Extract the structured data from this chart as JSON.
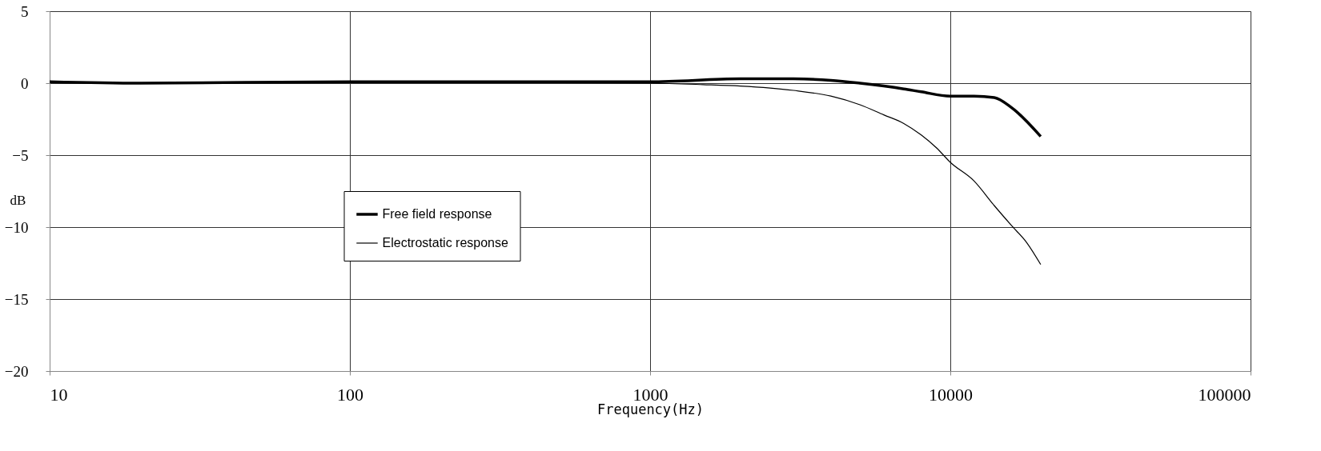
{
  "chart_data": {
    "type": "line",
    "xlabel": "Frequency(Hz)",
    "ylabel": "dB",
    "log": "x",
    "grid": true,
    "legend": "left",
    "xlim": [
      10,
      100000
    ],
    "xticks": [
      10,
      100,
      1000,
      10000,
      100000
    ],
    "ylim": [
      -20,
      5
    ],
    "yticks": [
      -20,
      -15,
      -10,
      -5,
      0,
      5
    ],
    "series": [
      {
        "name": "Free field response",
        "color": "#000000",
        "x": [
          10,
          20,
          100,
          1000,
          2000,
          3000,
          4000,
          5000,
          6000,
          7000,
          8000,
          10000,
          12000,
          14000,
          16000,
          20000
        ],
        "values": [
          0.1,
          0.0,
          0.1,
          0.1,
          0.3,
          0.3,
          0.2,
          0.0,
          -0.2,
          -0.4,
          -0.6,
          -0.9,
          -0.9,
          -1.0,
          -1.7,
          -3.7
        ]
      },
      {
        "name": "Electrostatic response",
        "color": "#000000",
        "x": [
          10,
          20,
          100,
          1000,
          1500,
          2000,
          3000,
          4000,
          5000,
          6000,
          7000,
          8000,
          9000,
          10000,
          12000,
          14000,
          16000,
          18000,
          20000
        ],
        "values": [
          0.1,
          0.0,
          0.1,
          0.0,
          -0.1,
          -0.2,
          -0.5,
          -0.9,
          -1.5,
          -2.2,
          -2.8,
          -3.6,
          -4.5,
          -5.5,
          -6.8,
          -8.5,
          -9.9,
          -11.1,
          -12.6
        ]
      }
    ]
  }
}
